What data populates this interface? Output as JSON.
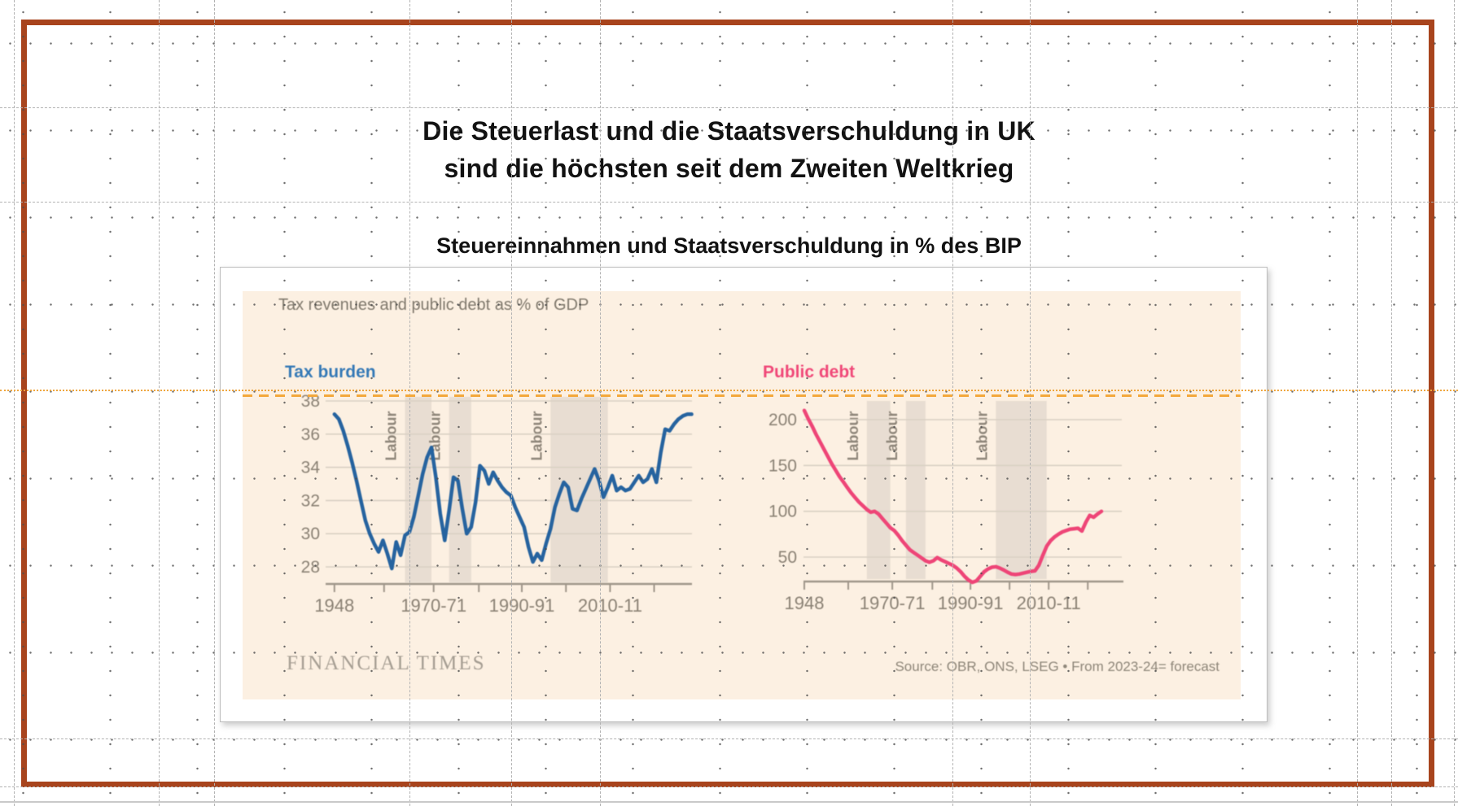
{
  "slide": {
    "title_line1": "Die Steuerlast und die Staatsverschuldung in UK",
    "title_line2": "sind die höchsten seit dem Zweiten Weltkrieg",
    "subtitle": "Steuereinnahmen und Staatsverschuldung in % des BIP"
  },
  "ft_chart": {
    "title": "Tax revenues and public debt as % of GDP",
    "brand": "FINANCIAL TIMES",
    "source": "Source: OBR, ONS, LSEG • From 2023-24= forecast",
    "colors": {
      "paper": "#fcf0e2",
      "tax_line": "#26639f",
      "debt_line": "#ee4577",
      "tax_label": "#3579b6",
      "debt_label": "#f04878",
      "labour_band": "#e4d9cf",
      "frame_brown": "#a8441d",
      "guide_orange": "#f3a83c"
    }
  },
  "chart_data": [
    {
      "type": "line",
      "name": "Tax burden",
      "ylabel": "% of GDP",
      "xlabel": "",
      "color": "#26639f",
      "ylim": [
        28,
        38
      ],
      "xlim": [
        1948,
        2029
      ],
      "grid": "horizontal-only",
      "yticks": [
        38,
        36,
        34,
        32,
        30,
        28
      ],
      "xticks": [
        {
          "year": 1948,
          "label": "1948"
        },
        {
          "year": 1970.5,
          "label": "1970-71"
        },
        {
          "year": 1990.5,
          "label": "1990-91"
        },
        {
          "year": 2010.5,
          "label": "2010-11"
        }
      ],
      "band_label": "Labour",
      "labour_bands": [
        [
          1964,
          1970
        ],
        [
          1974,
          1979
        ],
        [
          1997,
          2010
        ]
      ],
      "points": [
        [
          1948,
          37.2
        ],
        [
          1949,
          36.9
        ],
        [
          1950,
          36.2
        ],
        [
          1951,
          35.3
        ],
        [
          1952,
          34.3
        ],
        [
          1953,
          33.2
        ],
        [
          1954,
          32.0
        ],
        [
          1955,
          30.8
        ],
        [
          1956,
          30.0
        ],
        [
          1957,
          29.4
        ],
        [
          1958,
          28.9
        ],
        [
          1959,
          29.6
        ],
        [
          1960,
          28.8
        ],
        [
          1961,
          27.9
        ],
        [
          1962,
          29.5
        ],
        [
          1963,
          28.7
        ],
        [
          1964,
          29.9
        ],
        [
          1965,
          30.1
        ],
        [
          1966,
          31.0
        ],
        [
          1967,
          32.3
        ],
        [
          1968,
          33.6
        ],
        [
          1969,
          34.6
        ],
        [
          1970,
          35.2
        ],
        [
          1971,
          33.4
        ],
        [
          1972,
          31.2
        ],
        [
          1973,
          29.6
        ],
        [
          1974,
          31.4
        ],
        [
          1975,
          33.4
        ],
        [
          1976,
          33.2
        ],
        [
          1977,
          31.5
        ],
        [
          1978,
          30.0
        ],
        [
          1979,
          30.4
        ],
        [
          1980,
          31.9
        ],
        [
          1981,
          34.1
        ],
        [
          1982,
          33.8
        ],
        [
          1983,
          33.0
        ],
        [
          1984,
          33.7
        ],
        [
          1985,
          33.2
        ],
        [
          1986,
          32.8
        ],
        [
          1987,
          32.5
        ],
        [
          1988,
          32.3
        ],
        [
          1989,
          31.6
        ],
        [
          1990,
          31.0
        ],
        [
          1991,
          30.4
        ],
        [
          1992,
          29.2
        ],
        [
          1993,
          28.3
        ],
        [
          1994,
          28.8
        ],
        [
          1995,
          28.4
        ],
        [
          1996,
          29.4
        ],
        [
          1997,
          30.3
        ],
        [
          1998,
          31.6
        ],
        [
          1999,
          32.4
        ],
        [
          2000,
          33.1
        ],
        [
          2001,
          32.8
        ],
        [
          2002,
          31.5
        ],
        [
          2003,
          31.4
        ],
        [
          2004,
          32.1
        ],
        [
          2005,
          32.7
        ],
        [
          2006,
          33.3
        ],
        [
          2007,
          33.9
        ],
        [
          2008,
          33.2
        ],
        [
          2009,
          32.2
        ],
        [
          2010,
          32.8
        ],
        [
          2011,
          33.5
        ],
        [
          2012,
          32.6
        ],
        [
          2013,
          32.8
        ],
        [
          2014,
          32.6
        ],
        [
          2015,
          32.7
        ],
        [
          2016,
          33.1
        ],
        [
          2017,
          33.5
        ],
        [
          2018,
          33.1
        ],
        [
          2019,
          33.3
        ],
        [
          2020,
          33.9
        ],
        [
          2021,
          33.1
        ],
        [
          2022,
          34.9
        ],
        [
          2023,
          36.3
        ],
        [
          2024,
          36.2
        ],
        [
          2025,
          36.6
        ],
        [
          2026,
          36.9
        ],
        [
          2027,
          37.1
        ],
        [
          2028,
          37.2
        ],
        [
          2029,
          37.2
        ]
      ]
    },
    {
      "type": "line",
      "name": "Public debt",
      "ylabel": "% of GDP",
      "xlabel": "",
      "color": "#ee4577",
      "ylim": [
        22,
        220
      ],
      "xlim": [
        1948,
        2024
      ],
      "grid": "horizontal-only",
      "yticks": [
        200,
        150,
        100,
        50
      ],
      "xticks": [
        {
          "year": 1948,
          "label": "1948"
        },
        {
          "year": 1970.5,
          "label": "1970-71"
        },
        {
          "year": 1990.5,
          "label": "1990-91"
        },
        {
          "year": 2010.5,
          "label": "2010-11"
        }
      ],
      "band_label": "Labour",
      "labour_bands": [
        [
          1964,
          1970
        ],
        [
          1974,
          1979
        ],
        [
          1997,
          2010
        ]
      ],
      "points": [
        [
          1948,
          210
        ],
        [
          1949,
          201
        ],
        [
          1950,
          193
        ],
        [
          1951,
          184
        ],
        [
          1952,
          176
        ],
        [
          1953,
          168
        ],
        [
          1954,
          160
        ],
        [
          1955,
          152
        ],
        [
          1956,
          145
        ],
        [
          1957,
          138
        ],
        [
          1958,
          132
        ],
        [
          1959,
          126
        ],
        [
          1960,
          120
        ],
        [
          1961,
          115
        ],
        [
          1962,
          110
        ],
        [
          1963,
          106
        ],
        [
          1964,
          102
        ],
        [
          1965,
          99
        ],
        [
          1966,
          100
        ],
        [
          1967,
          97
        ],
        [
          1968,
          92
        ],
        [
          1969,
          87
        ],
        [
          1970,
          82
        ],
        [
          1971,
          79
        ],
        [
          1972,
          74
        ],
        [
          1973,
          68
        ],
        [
          1974,
          63
        ],
        [
          1975,
          58
        ],
        [
          1976,
          55
        ],
        [
          1977,
          52
        ],
        [
          1978,
          49
        ],
        [
          1979,
          46
        ],
        [
          1980,
          44.5
        ],
        [
          1981,
          46
        ],
        [
          1982,
          49.5
        ],
        [
          1983,
          47
        ],
        [
          1984,
          45
        ],
        [
          1985,
          43
        ],
        [
          1986,
          41
        ],
        [
          1987,
          38
        ],
        [
          1988,
          34
        ],
        [
          1989,
          29
        ],
        [
          1990,
          25
        ],
        [
          1991,
          22.5
        ],
        [
          1992,
          24
        ],
        [
          1993,
          29
        ],
        [
          1994,
          34
        ],
        [
          1995,
          37
        ],
        [
          1996,
          39
        ],
        [
          1997,
          39.5
        ],
        [
          1998,
          38
        ],
        [
          1999,
          36
        ],
        [
          2000,
          33.5
        ],
        [
          2001,
          31.5
        ],
        [
          2002,
          31
        ],
        [
          2003,
          31.5
        ],
        [
          2004,
          32.5
        ],
        [
          2005,
          33.5
        ],
        [
          2006,
          34.5
        ],
        [
          2007,
          35
        ],
        [
          2008,
          41
        ],
        [
          2009,
          52
        ],
        [
          2010,
          62
        ],
        [
          2011,
          68
        ],
        [
          2012,
          72
        ],
        [
          2013,
          75
        ],
        [
          2014,
          77.5
        ],
        [
          2015,
          79
        ],
        [
          2016,
          80.5
        ],
        [
          2017,
          81
        ],
        [
          2018,
          81.5
        ],
        [
          2019,
          78.5
        ],
        [
          2020,
          88
        ],
        [
          2021,
          95.5
        ],
        [
          2022,
          93.5
        ],
        [
          2023,
          97
        ],
        [
          2024,
          100
        ]
      ]
    }
  ]
}
